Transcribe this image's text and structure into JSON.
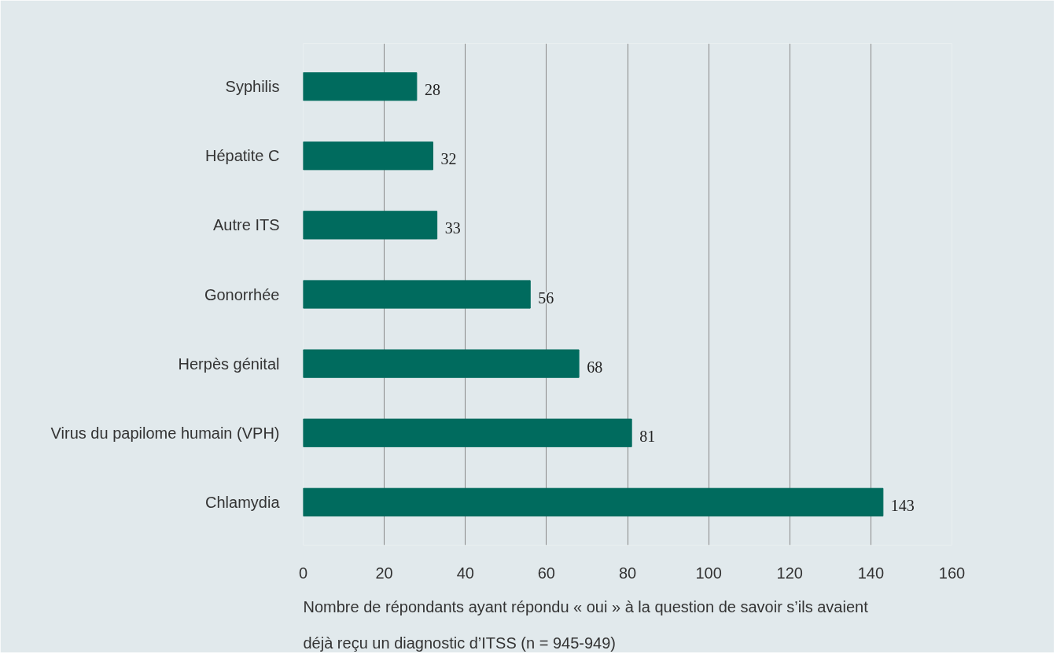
{
  "chart_data": {
    "type": "bar",
    "orientation": "horizontal",
    "categories": [
      "Syphilis",
      "Hépatite C",
      "Autre ITS",
      "Gonorrhée",
      "Herpès génital",
      "Virus du papilome humain (VPH)",
      "Chlamydia"
    ],
    "values": [
      28,
      32,
      33,
      56,
      68,
      81,
      143
    ],
    "color": "#006b5e",
    "xlim": [
      0,
      160
    ],
    "xticks": [
      0,
      20,
      40,
      60,
      80,
      100,
      120,
      140,
      160
    ],
    "grid": "x",
    "data_labels": true,
    "xlabel": "Nombre de répondants ayant répondu « oui » à la question de savoir s’ils avaient déjà reçu un diagnostic d’ITSS (n = 945-949)"
  }
}
